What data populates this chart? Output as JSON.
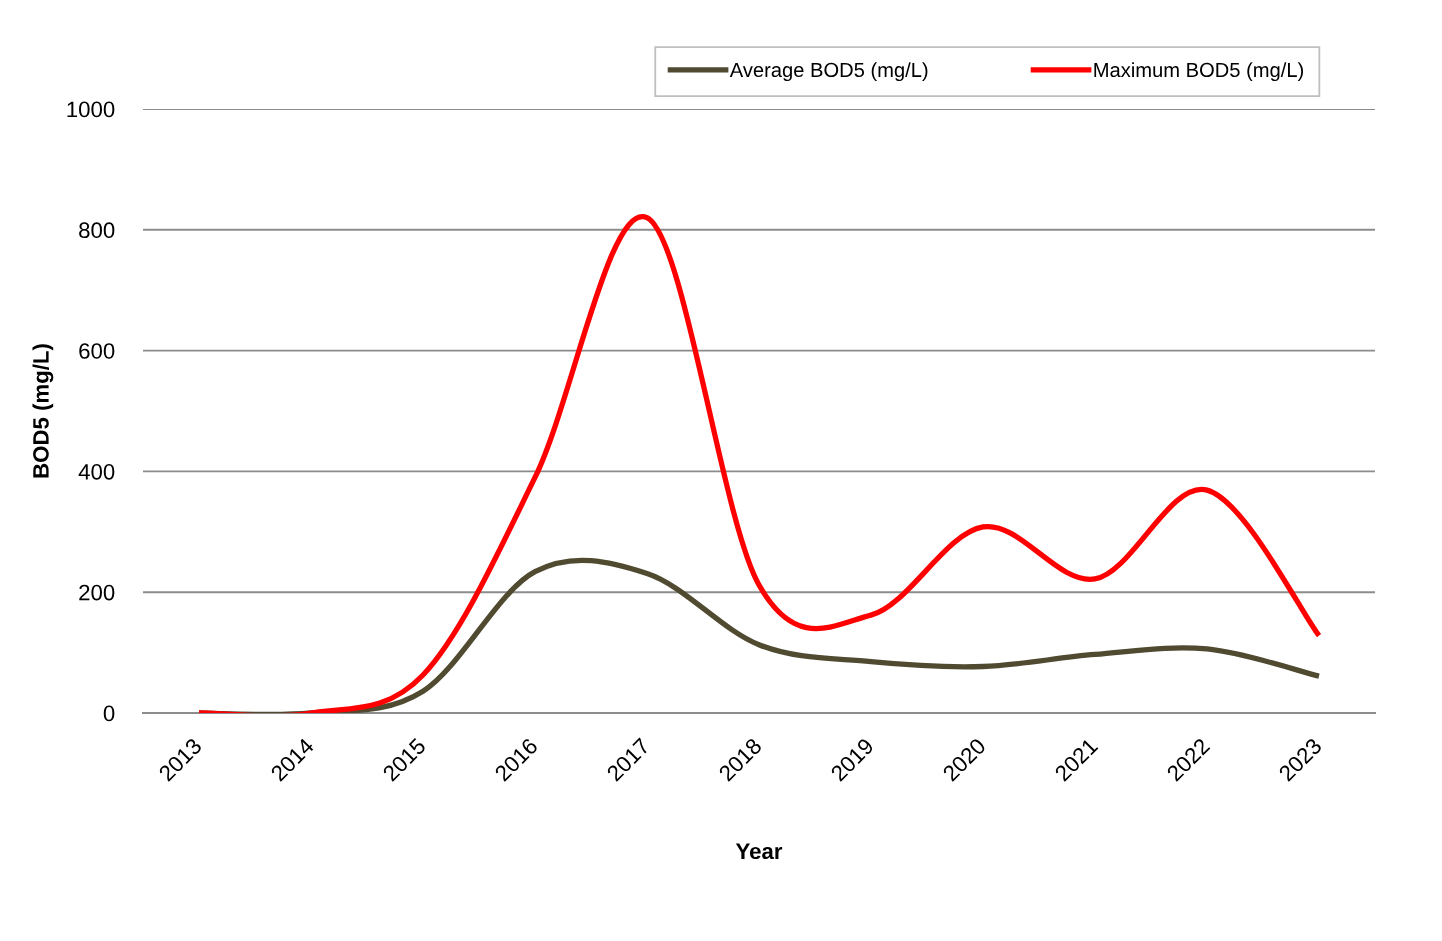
{
  "chart_data": {
    "type": "line",
    "categories": [
      "2013",
      "2014",
      "2015",
      "2016",
      "2017",
      "2018",
      "2019",
      "2020",
      "2021",
      "2022",
      "2023"
    ],
    "xlabel": "Year",
    "ylabel": "BOD5 (mg/L)",
    "ylim": [
      0,
      1000
    ],
    "yticks": [
      0,
      200,
      400,
      600,
      800,
      1000
    ],
    "grid": "y",
    "legend": "top right",
    "line_style": "solid",
    "series": [
      {
        "name": "Average BOD5 (mg/L)",
        "color": "#4f4a30",
        "values": [
          0,
          0,
          36,
          234,
          231,
          113,
          85,
          77,
          97,
          106,
          61
        ]
      },
      {
        "name": "Maximum BOD5 (mg/L)",
        "color": "#ff0000",
        "values": [
          0,
          0,
          63,
          390,
          820,
          212,
          162,
          308,
          222,
          369,
          128
        ]
      }
    ]
  }
}
